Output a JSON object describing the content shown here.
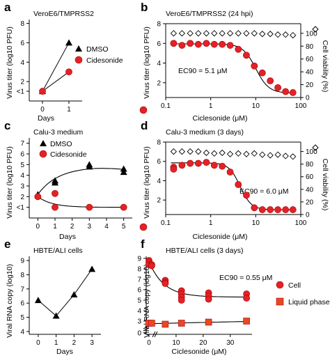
{
  "chart_data": [
    {
      "id": "a",
      "type": "line",
      "panel_label": "a",
      "title": "VeroE6/TMPRSS2",
      "xlabel": "Days",
      "ylabel": "Virus titer (log10 PFU)",
      "x_ticks": [
        "0",
        "1"
      ],
      "y_ticks": [
        "<1",
        "2",
        "4",
        "6",
        "8"
      ],
      "ylim": [
        0,
        8
      ],
      "series": [
        {
          "name": "DMSO",
          "marker": "triangle",
          "color": "#000000",
          "x": [
            0,
            1
          ],
          "y": [
            1,
            6
          ]
        },
        {
          "name": "Cidesonide",
          "marker": "circle",
          "color": "#e32228",
          "x": [
            0,
            1
          ],
          "y": [
            1,
            3
          ]
        }
      ]
    },
    {
      "id": "b",
      "type": "scatter",
      "panel_label": "b",
      "title": "VeroE6/TMPRSS2 (24 hpi)",
      "xlabel": "Ciclesonide (μM)",
      "ylabel": "Virus titer (log10 PFU)",
      "ylabel_right": "Cell viability (%)",
      "x_scale": "log",
      "x_ticks": [
        "0.1",
        "1",
        "10",
        "100"
      ],
      "y_ticks": [
        "2",
        "4",
        "6",
        "8"
      ],
      "y_right_ticks": [
        "0",
        "20",
        "40",
        "60",
        "80",
        "100"
      ],
      "annotation": "EC90 = 5.1 μM",
      "series": [
        {
          "name": "Virus titer",
          "marker": "circle",
          "color": "#e32228",
          "x": [
            0.15,
            0.23,
            0.35,
            0.53,
            0.8,
            1.2,
            1.8,
            2.7,
            4.1,
            6.2,
            9.3,
            14,
            21,
            31,
            46,
            67
          ],
          "y": [
            6.0,
            5.8,
            6.0,
            5.9,
            6.0,
            5.9,
            5.9,
            5.8,
            5.4,
            4.8,
            3.7,
            3.0,
            2.2,
            1.5,
            1.1,
            1.0
          ]
        },
        {
          "name": "Cell viability",
          "marker": "open-diamond",
          "color": "#000000",
          "axis": "right",
          "x": [
            0.15,
            0.23,
            0.35,
            0.53,
            0.8,
            1.2,
            1.8,
            2.7,
            4.1,
            6.2,
            9.3,
            14,
            21,
            31,
            46,
            67
          ],
          "y": [
            100,
            100,
            100,
            100,
            100,
            100,
            100,
            100,
            100,
            100,
            100,
            99,
            99,
            98,
            98,
            97
          ]
        }
      ]
    },
    {
      "id": "c",
      "type": "line",
      "panel_label": "c",
      "title": "Calu-3 medium",
      "xlabel": "Days",
      "ylabel": "Virus titer (log10 PFU)",
      "x_ticks": [
        "0",
        "1",
        "2",
        "3",
        "4",
        "5"
      ],
      "y_ticks": [
        "<1",
        "2",
        "3",
        "4",
        "5",
        "6",
        "7"
      ],
      "ylim": [
        0,
        7
      ],
      "series": [
        {
          "name": "DMSO",
          "marker": "triangle",
          "color": "#000000",
          "x": [
            0,
            1,
            1,
            3,
            3,
            5,
            5
          ],
          "y": [
            2.2,
            3.3,
            3.5,
            5.0,
            4.8,
            4.6,
            4.3
          ]
        },
        {
          "name": "Cidesonide",
          "marker": "circle",
          "color": "#e32228",
          "x": [
            0,
            1,
            1,
            3,
            5
          ],
          "y": [
            2.0,
            2.3,
            1.0,
            1.0,
            1.0
          ]
        }
      ]
    },
    {
      "id": "d",
      "type": "scatter",
      "panel_label": "d",
      "title": "Calu-3 medium (3 days)",
      "xlabel": "Ciclesonide (μM)",
      "ylabel": "Virus titer (log10 PFU)",
      "ylabel_right": "Cell viability (%)",
      "x_scale": "log",
      "x_ticks": [
        "0.1",
        "1",
        "10",
        "100"
      ],
      "y_ticks": [
        "2",
        "4",
        "6",
        "8"
      ],
      "y_right_ticks": [
        "0",
        "20",
        "40",
        "60",
        "80",
        "100"
      ],
      "annotation": "EC90 = 6.0 μM",
      "series": [
        {
          "name": "Virus titer",
          "marker": "circle",
          "color": "#e32228",
          "x": [
            0.15,
            0.15,
            0.23,
            0.35,
            0.53,
            0.8,
            1.2,
            1.8,
            2.7,
            4.1,
            6.2,
            9.3,
            14,
            21,
            31,
            46,
            67
          ],
          "y": [
            5.4,
            5.2,
            5.6,
            5.8,
            5.8,
            5.9,
            5.6,
            5.5,
            4.9,
            3.6,
            2.5,
            1.2,
            1.0,
            1.0,
            1.0,
            1.0,
            1.0
          ]
        },
        {
          "name": "Cell viability",
          "marker": "open-diamond",
          "color": "#000000",
          "axis": "right",
          "x": [
            0.15,
            0.23,
            0.35,
            0.53,
            0.8,
            1.2,
            1.8,
            2.7,
            4.1,
            6.2,
            9.3,
            14,
            21,
            31,
            46,
            67
          ],
          "y": [
            100,
            100,
            100,
            100,
            98,
            97,
            98,
            96,
            97,
            96,
            97,
            95,
            94,
            95,
            93,
            92
          ]
        }
      ]
    },
    {
      "id": "e",
      "type": "line",
      "panel_label": "e",
      "title": "HBTE/ALI cells",
      "xlabel": "Days",
      "ylabel": "Viral RNA copy (log10)",
      "x_ticks": [
        "0",
        "1",
        "2",
        "3"
      ],
      "y_ticks": [
        "4",
        "5",
        "6",
        "7",
        "8",
        "9"
      ],
      "ylim": [
        4,
        9
      ],
      "series": [
        {
          "name": "",
          "marker": "triangle",
          "color": "#000000",
          "x": [
            0,
            1,
            2,
            3
          ],
          "y": [
            6.2,
            5.1,
            6.6,
            8.4
          ]
        }
      ]
    },
    {
      "id": "f",
      "type": "scatter",
      "panel_label": "f",
      "title": "HBTE/ALI cells (3 days)",
      "xlabel": "Ciclesonide (μM)",
      "ylabel": "Viral RNA copy (log10)",
      "x_ticks": [
        "0",
        "10",
        "20",
        "30"
      ],
      "y_ticks": [
        "0",
        "3",
        "4",
        "5",
        "6",
        "7",
        "8",
        "9"
      ],
      "annotation": "EC90 = 0.55 μM",
      "series": [
        {
          "name": "Cell",
          "marker": "circle",
          "color": "#e32228",
          "x": [
            0,
            0,
            0,
            1,
            1,
            6,
            6,
            6,
            12,
            12,
            12,
            12,
            22,
            22,
            22,
            36,
            36
          ],
          "y": [
            8.8,
            8.6,
            8.4,
            8.4,
            8.3,
            6.9,
            6.7,
            6.6,
            5.9,
            5.6,
            5.3,
            5.0,
            5.7,
            5.4,
            5.1,
            5.6,
            5.2
          ]
        },
        {
          "name": "Liquid phase",
          "marker": "square",
          "color": "#e8491d",
          "x": [
            0,
            1,
            6,
            12,
            22,
            36
          ],
          "y": [
            2.8,
            2.8,
            2.7,
            2.8,
            2.9,
            3.0
          ]
        }
      ]
    }
  ]
}
